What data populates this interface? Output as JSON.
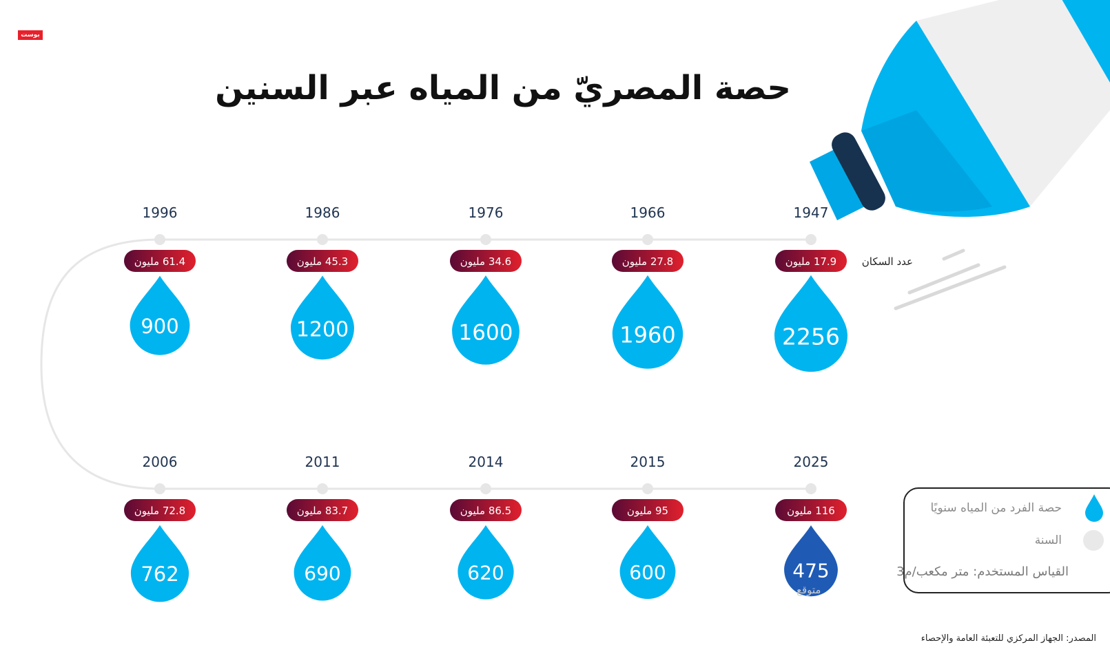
{
  "title": "حصة المصريّ من المياه عبر السنين",
  "logo_text": "بوست",
  "population_label": "عدد السكان",
  "forecast_label": "متوقع",
  "legend": {
    "drop_label": "حصة الفرد من المياه سنويًا",
    "year_label": "السنة",
    "unit_label": "القياس المستخدم: متر مكعب/م3"
  },
  "source": "المصدر: الجهاز المركزي للتعبئة العامة والإحصاء",
  "colors": {
    "drop": "#00b4f0",
    "drop_forecast": "#1f5bb5",
    "pill_start": "#5a0a35",
    "pill_end": "#e0202d",
    "timeline": "#e6e6e6",
    "bottle_blue": "#00b4f0",
    "bottle_cap": "#17324f"
  },
  "icons": [
    "logo-icon",
    "water-bottle-icon",
    "drop-icon",
    "year-dot-icon"
  ],
  "chart_data": {
    "type": "bubble-timeline",
    "title": "حصة المصريّ من المياه عبر السنين",
    "x": [
      "1947",
      "1966",
      "1976",
      "1986",
      "1996",
      "2006",
      "2011",
      "2014",
      "2015",
      "2025"
    ],
    "series": [
      {
        "name": "حصة الفرد من المياه سنويًا",
        "values": [
          2256,
          1960,
          1600,
          1200,
          900,
          762,
          690,
          620,
          600,
          475
        ]
      },
      {
        "name": "عدد السكان",
        "values": [
          17.9,
          27.8,
          34.6,
          45.3,
          61.4,
          72.8,
          83.7,
          86.5,
          95,
          116
        ]
      }
    ],
    "population_text": [
      "17.9 مليون",
      "27.8 مليون",
      "34.6 مليون",
      "45.3 مليون",
      "61.4 مليون",
      "72.8 مليون",
      "83.7 مليون",
      "86.5 مليون",
      "95 مليون",
      "116 مليون"
    ],
    "forecast": [
      false,
      false,
      false,
      false,
      false,
      false,
      false,
      false,
      false,
      true
    ]
  }
}
